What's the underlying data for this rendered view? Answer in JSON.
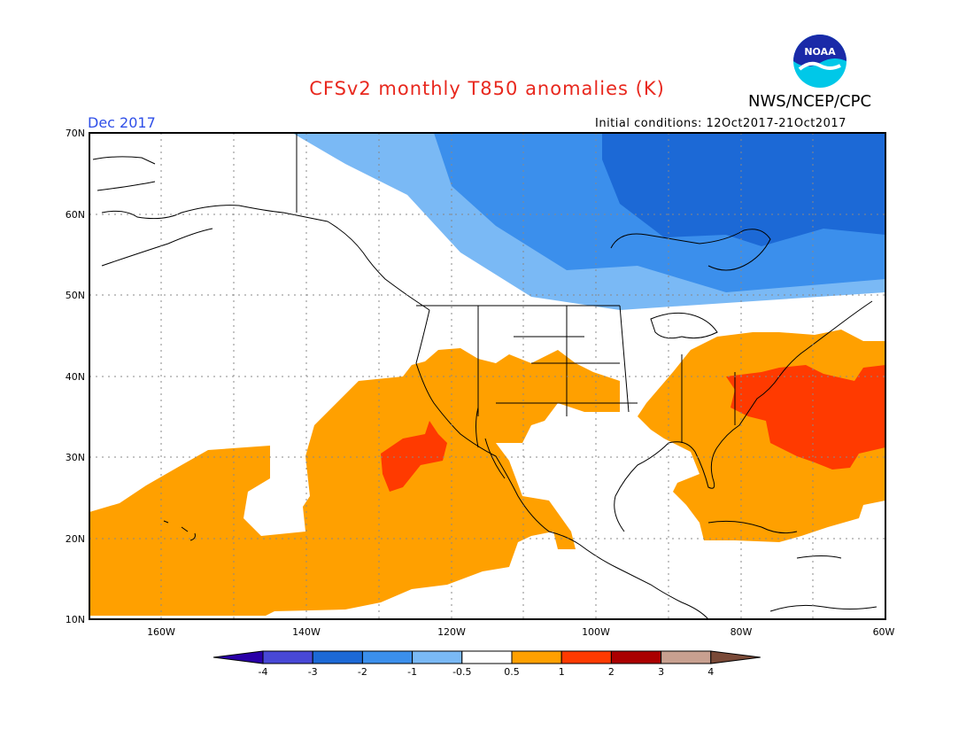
{
  "title": "CFSv2 monthly T850 anomalies (K)",
  "org": "NWS/NCEP/CPC",
  "logo_text": "NOAA",
  "valid_month": "Dec 2017",
  "initial_conditions": "Initial conditions: 12Oct2017-21Oct2017",
  "map": {
    "lat_labels": [
      "70N",
      "60N",
      "50N",
      "40N",
      "30N",
      "20N",
      "10N"
    ],
    "lon_labels": [
      "160W",
      "140W",
      "120W",
      "100W",
      "80W",
      "60W"
    ],
    "lat_range": [
      10,
      70
    ],
    "lon_range": [
      -170,
      -60
    ]
  },
  "legend": {
    "ticks": [
      "-4",
      "-3",
      "-2",
      "-1",
      "-0.5",
      "0.5",
      "1",
      "2",
      "3",
      "4"
    ],
    "colors": [
      "#2a00a8",
      "#4848d6",
      "#1c69d6",
      "#3b8fec",
      "#7ab9f5",
      "#ffffff",
      "#ffa000",
      "#ff3a00",
      "#aa0000",
      "#c8a090",
      "#7a4a38"
    ]
  }
}
